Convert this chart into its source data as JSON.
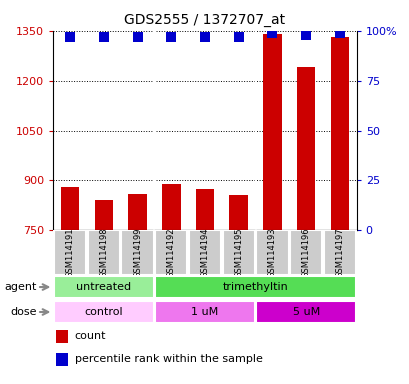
{
  "title": "GDS2555 / 1372707_at",
  "samples": [
    "GSM114191",
    "GSM114198",
    "GSM114199",
    "GSM114192",
    "GSM114194",
    "GSM114195",
    "GSM114193",
    "GSM114196",
    "GSM114197"
  ],
  "counts": [
    880,
    840,
    860,
    890,
    875,
    855,
    1340,
    1240,
    1330
  ],
  "percentiles": [
    97,
    97,
    97,
    97,
    97,
    97,
    99,
    98,
    99
  ],
  "ylim_left": [
    750,
    1350
  ],
  "ylim_right": [
    0,
    100
  ],
  "yticks_left": [
    750,
    900,
    1050,
    1200,
    1350
  ],
  "yticks_right": [
    0,
    25,
    50,
    75,
    100
  ],
  "bar_color": "#cc0000",
  "dot_color": "#0000cc",
  "dot_size": 55,
  "bar_width": 0.55,
  "agent_groups": [
    {
      "label": "untreated",
      "start": 0,
      "end": 3,
      "color": "#99ee99"
    },
    {
      "label": "trimethyltin",
      "start": 3,
      "end": 9,
      "color": "#55dd55"
    }
  ],
  "dose_groups": [
    {
      "label": "control",
      "start": 0,
      "end": 3,
      "color": "#ffccff"
    },
    {
      "label": "1 uM",
      "start": 3,
      "end": 6,
      "color": "#ee77ee"
    },
    {
      "label": "5 uM",
      "start": 6,
      "end": 9,
      "color": "#cc00cc"
    }
  ],
  "legend_items": [
    {
      "label": "count",
      "color": "#cc0000"
    },
    {
      "label": "percentile rank within the sample",
      "color": "#0000cc"
    }
  ],
  "ylabel_left_color": "#cc0000",
  "ylabel_right_color": "#0000cc",
  "background_color": "#ffffff",
  "sample_box_color": "#cccccc",
  "agent_label_color": "#000000",
  "dose_label_color": "#000000"
}
